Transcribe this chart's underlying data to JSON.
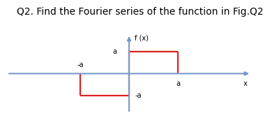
{
  "title": "Q2. Find the Fourier series of the function in Fig.Q2",
  "title_fontsize": 10,
  "axis_color": "#7799cc",
  "func_color": "#dd2222",
  "background_color": "#ffffff",
  "ylabel": "f (x)",
  "xlabel": "x",
  "a_label": "a",
  "neg_a_label": "-a",
  "xlim": [
    -2.5,
    2.5
  ],
  "ylim": [
    -1.8,
    1.8
  ],
  "a": 1.0,
  "label_fontsize": 7,
  "axis_label_fontsize": 7
}
